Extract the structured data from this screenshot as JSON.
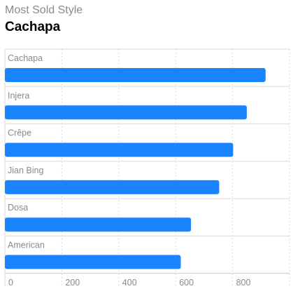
{
  "header": {
    "subtitle": "Most Sold Style",
    "title": "Cachapa"
  },
  "colors": {
    "bar": "#1a84ff",
    "grid": "#d9d9de",
    "axis": "#c7c7cc",
    "label": "#8a8a8e"
  },
  "chart_data": {
    "type": "bar",
    "orientation": "horizontal",
    "categories": [
      "Cachapa",
      "Injera",
      "Crêpe",
      "Jian Bing",
      "Dosa",
      "American"
    ],
    "values": [
      916,
      850,
      802,
      753,
      654,
      618
    ],
    "xlim": [
      0,
      1000
    ],
    "xticks": [
      0,
      200,
      400,
      600,
      800
    ],
    "grid": true,
    "legend": "none"
  }
}
